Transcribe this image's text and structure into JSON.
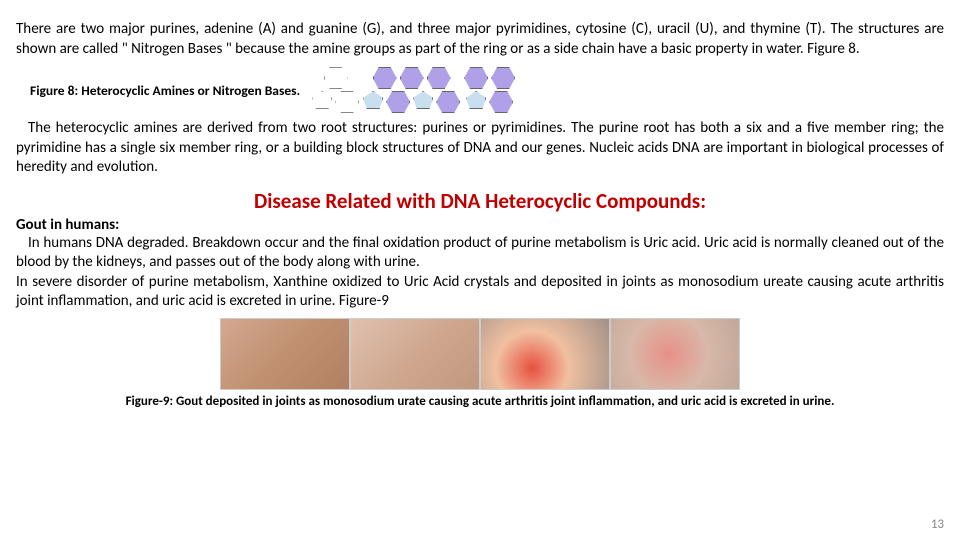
{
  "intro": "There are two major purines, adenine (A) and guanine (G), and three major pyrimidines, cytosine (C), uracil (U), and thymine (T). The structures are shown are called \" Nitrogen Bases \" because the amine groups as part of the ring or as a side chain have a basic property in water. Figure 8.",
  "fig8_caption": "Figure 8: Heterocyclic Amines or Nitrogen Bases.",
  "para2": "The heterocyclic amines are derived from two root structures: purines or pyrimidines. The purine root has both a six and a five member ring; the pyrimidine has a single six member ring, or a building block structures of DNA and our genes. Nucleic acids DNA are important in biological processes of heredity and evolution.",
  "heading": "Disease Related with DNA Heterocyclic Compounds:",
  "subhead": "Gout in humans:",
  "gout1": "In humans DNA degraded. Breakdown occur and the final oxidation product of purine metabolism is Uric acid. Uric acid is normally cleaned out of the blood by the kidneys, and passes out of the body along with urine.",
  "gout2": "In severe disorder of purine metabolism, Xanthine oxidized to Uric Acid crystals and deposited in joints as monosodium ureate causing acute arthritis joint inflammation, and uric acid is excreted in urine. Figure-9",
  "fig9_caption": "Figure-9: Gout deposited in joints as monosodium urate  causing acute arthritis joint inflammation, and uric acid is excreted in urine.",
  "pagenum": "13",
  "colors": {
    "heading_red": "#c00000",
    "text": "#000000",
    "pagenum": "#888888",
    "hex_purple": "#b0a0e8",
    "pent_blue": "#c8dff0"
  }
}
